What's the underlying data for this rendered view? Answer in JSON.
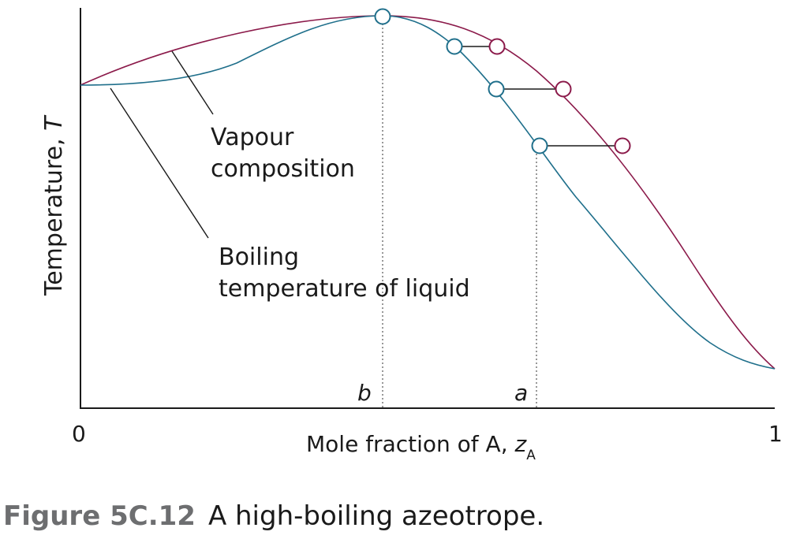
{
  "diagram": {
    "y_axis_label": "Temperature, ",
    "y_axis_symbol": "T",
    "x_axis_label": "Mole fraction of A, ",
    "x_axis_symbol": "z",
    "x_axis_subscript": "A",
    "x_tick_start": "0",
    "x_tick_end": "1",
    "marker_b": "b",
    "marker_a": "a",
    "vapour_label_line1": "Vapour",
    "vapour_label_line2": "composition",
    "liquid_label_line1": "Boiling",
    "liquid_label_line2": "temperature of liquid"
  },
  "caption": {
    "number": "Figure 5C.12",
    "text": "A high-boiling azeotrope."
  },
  "colors": {
    "vapour_curve": "#8b1a4a",
    "liquid_curve": "#1f6f8b",
    "axis": "#1a1a1a",
    "caption_number": "#6d6e70"
  }
}
